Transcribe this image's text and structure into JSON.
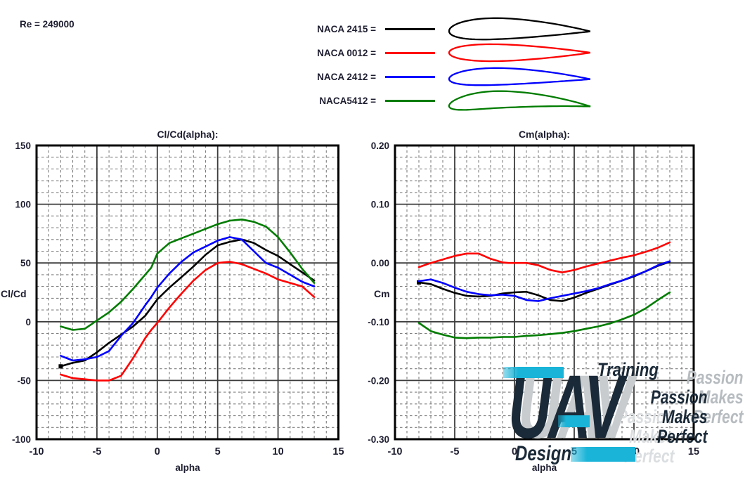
{
  "header": {
    "re_label": "Re = 249000"
  },
  "legend": {
    "items": [
      {
        "label": "NACA 2415 =",
        "color": "#000000",
        "naca": {
          "m": 0.02,
          "p": 0.4,
          "t": 0.15
        }
      },
      {
        "label": "NACA 0012 =",
        "color": "#ff0000",
        "naca": {
          "m": 0.0,
          "p": 0.4,
          "t": 0.12
        }
      },
      {
        "label": "NACA 2412 =",
        "color": "#0000ff",
        "naca": {
          "m": 0.02,
          "p": 0.4,
          "t": 0.12
        }
      },
      {
        "label": "NACA5412 =",
        "color": "#007c00",
        "naca": {
          "m": 0.05,
          "p": 0.4,
          "t": 0.12
        }
      }
    ]
  },
  "watermark": {
    "brand": "UAV",
    "sub": "Design",
    "training": "Training",
    "tagline": [
      "Passion",
      "Makes",
      "Perfect"
    ],
    "accent_color": "#1ab4d8",
    "dark_color": "#1b2a38"
  },
  "chart_data": [
    {
      "type": "line",
      "title": "Cl/Cd(alpha):",
      "xlabel": "alpha",
      "ylabel": "Cl/Cd",
      "xlim": [
        -10,
        15
      ],
      "ylim": [
        -100,
        150
      ],
      "xticks": [
        -10,
        -5,
        0,
        5,
        10,
        15
      ],
      "xtick_labels": [
        "-10",
        "-5",
        "0",
        "5",
        "10",
        "15"
      ],
      "yticks": [
        150,
        100,
        50,
        0,
        -50,
        -100
      ],
      "ytick_labels": [
        "150",
        "100",
        "50",
        "0",
        "-50",
        "-100"
      ],
      "grid": {
        "divisions": 25,
        "major_every": 5
      },
      "x": [
        -8,
        -7,
        -6,
        -5,
        -4,
        -3,
        -2,
        -1,
        -0.5,
        0,
        1,
        2,
        3,
        4,
        5,
        6,
        7,
        8,
        9,
        10,
        11,
        12,
        13
      ],
      "series": [
        {
          "name": "NACA 2415",
          "color": "#000000",
          "marker_first": true,
          "values": [
            -38,
            -35,
            -33,
            -26,
            -18,
            -11,
            -4,
            5,
            12,
            19,
            29,
            38,
            47,
            57,
            65,
            68,
            70,
            67,
            61,
            56,
            49,
            42,
            35
          ]
        },
        {
          "name": "NACA 0012",
          "color": "#ff0000",
          "marker_first": false,
          "values": [
            -45,
            -48,
            -49,
            -50,
            -50,
            -46,
            -31,
            -14,
            -7,
            -1,
            12,
            24,
            35,
            44,
            50,
            51,
            49,
            45,
            41,
            36,
            33,
            30,
            21
          ]
        },
        {
          "name": "NACA 2412",
          "color": "#0000ff",
          "marker_first": false,
          "values": [
            -29,
            -33,
            -32,
            -30,
            -25,
            -12,
            -1,
            14,
            21,
            29,
            41,
            51,
            59,
            64,
            69,
            72,
            70,
            60,
            50,
            46,
            40,
            34,
            30
          ]
        },
        {
          "name": "NACA5412",
          "color": "#007c00",
          "marker_first": false,
          "values": [
            -4,
            -7,
            -6,
            1,
            8,
            17,
            28,
            40,
            46,
            58,
            67,
            71,
            75,
            79,
            83,
            86,
            87,
            85,
            81,
            72,
            59,
            45,
            33
          ]
        }
      ]
    },
    {
      "type": "line",
      "title": "Cm(alpha):",
      "xlabel": "alpha",
      "ylabel": "Cm",
      "xlim": [
        -10,
        15
      ],
      "ylim": [
        -0.3,
        0.2
      ],
      "xticks": [
        -10,
        -5,
        0,
        5,
        10,
        15
      ],
      "xtick_labels": [
        "-10",
        "-5",
        "0",
        "5",
        "10",
        "15"
      ],
      "yticks": [
        0.2,
        0.1,
        0.0,
        -0.1,
        -0.2,
        -0.3
      ],
      "ytick_labels": [
        "0.20",
        "0.10",
        "0.00",
        "-0.10",
        "-0.20",
        "-0.30"
      ],
      "grid": {
        "divisions": 25,
        "major_every": 5
      },
      "x": [
        -8,
        -7,
        -6,
        -5,
        -4,
        -3,
        -2,
        -1,
        -0.5,
        0,
        1,
        2,
        3,
        4,
        5,
        6,
        7,
        8,
        9,
        10,
        11,
        12,
        13
      ],
      "series": [
        {
          "name": "NACA 2415",
          "color": "#000000",
          "marker_first": true,
          "values": [
            -0.033,
            -0.036,
            -0.044,
            -0.051,
            -0.056,
            -0.057,
            -0.056,
            -0.052,
            -0.051,
            -0.05,
            -0.049,
            -0.055,
            -0.063,
            -0.065,
            -0.059,
            -0.051,
            -0.044,
            -0.037,
            -0.03,
            -0.023,
            -0.014,
            -0.005,
            0.002
          ]
        },
        {
          "name": "NACA 0012",
          "color": "#ff0000",
          "marker_first": false,
          "values": [
            -0.007,
            0.0,
            0.006,
            0.012,
            0.016,
            0.016,
            0.007,
            0.001,
            0.0,
            0.0,
            0.0,
            -0.004,
            -0.012,
            -0.016,
            -0.012,
            -0.006,
            -0.001,
            0.004,
            0.009,
            0.013,
            0.019,
            0.026,
            0.035
          ]
        },
        {
          "name": "NACA 2412",
          "color": "#0000ff",
          "marker_first": false,
          "values": [
            -0.031,
            -0.028,
            -0.034,
            -0.042,
            -0.049,
            -0.053,
            -0.055,
            -0.054,
            -0.055,
            -0.056,
            -0.063,
            -0.065,
            -0.06,
            -0.056,
            -0.052,
            -0.048,
            -0.043,
            -0.036,
            -0.03,
            -0.022,
            -0.014,
            -0.004,
            0.003
          ]
        },
        {
          "name": "NACA5412",
          "color": "#007c00",
          "marker_first": false,
          "values": [
            -0.102,
            -0.116,
            -0.122,
            -0.127,
            -0.128,
            -0.127,
            -0.127,
            -0.126,
            -0.126,
            -0.126,
            -0.124,
            -0.123,
            -0.121,
            -0.119,
            -0.116,
            -0.112,
            -0.108,
            -0.103,
            -0.096,
            -0.088,
            -0.077,
            -0.063,
            -0.05
          ]
        }
      ]
    }
  ]
}
